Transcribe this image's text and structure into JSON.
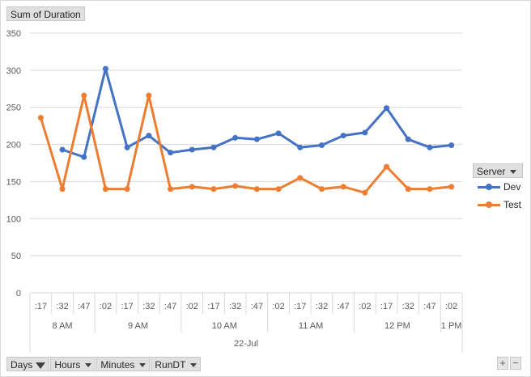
{
  "value_field": {
    "label": "Sum of Duration"
  },
  "legend": {
    "title": "Server",
    "items": [
      {
        "label": "Dev",
        "color": "#4472c4"
      },
      {
        "label": "Test",
        "color": "#ed7d31"
      }
    ]
  },
  "filter_buttons": [
    {
      "label": "Days",
      "icon": "filter-icon"
    },
    {
      "label": "Hours",
      "icon": "chevron-down-icon"
    },
    {
      "label": "Minutes",
      "icon": "chevron-down-icon"
    },
    {
      "label": "RunDT",
      "icon": "chevron-down-icon"
    }
  ],
  "zoom": {
    "plus": "+",
    "minus": "−"
  },
  "chart_data": {
    "type": "line",
    "title": "",
    "xlabel": "",
    "ylabel": "",
    "ylim": [
      0,
      350
    ],
    "yticks": [
      0,
      50,
      100,
      150,
      200,
      250,
      300,
      350
    ],
    "grid": true,
    "legend_position": "right",
    "categories": [
      ":17",
      ":32",
      ":47",
      ":02",
      ":17",
      ":32",
      ":47",
      ":02",
      ":17",
      ":32",
      ":47",
      ":02",
      ":17",
      ":32",
      ":47",
      ":02",
      ":17",
      ":32",
      ":47",
      ":02"
    ],
    "hour_groups": [
      {
        "label": "8 AM",
        "count": 3
      },
      {
        "label": "9 AM",
        "count": 4
      },
      {
        "label": "10 AM",
        "count": 4
      },
      {
        "label": "11 AM",
        "count": 4
      },
      {
        "label": "12 PM",
        "count": 4
      },
      {
        "label": "1 PM",
        "count": 1
      }
    ],
    "day_label": "22-Jul",
    "series": [
      {
        "name": "Dev",
        "color": "#4472c4",
        "values": [
          null,
          193,
          183,
          302,
          196,
          212,
          189,
          193,
          196,
          209,
          207,
          215,
          196,
          199,
          212,
          216,
          249,
          207,
          196,
          199
        ]
      },
      {
        "name": "Test",
        "color": "#ed7d31",
        "values": [
          236,
          140,
          266,
          140,
          140,
          266,
          140,
          143,
          140,
          144,
          140,
          140,
          155,
          140,
          143,
          135,
          170,
          140,
          140,
          143
        ]
      }
    ]
  }
}
